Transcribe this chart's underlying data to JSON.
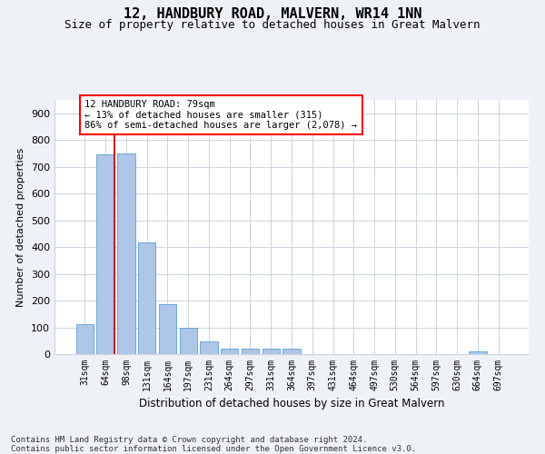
{
  "title": "12, HANDBURY ROAD, MALVERN, WR14 1NN",
  "subtitle": "Size of property relative to detached houses in Great Malvern",
  "xlabel": "Distribution of detached houses by size in Great Malvern",
  "ylabel": "Number of detached properties",
  "categories": [
    "31sqm",
    "64sqm",
    "98sqm",
    "131sqm",
    "164sqm",
    "197sqm",
    "231sqm",
    "264sqm",
    "297sqm",
    "331sqm",
    "364sqm",
    "397sqm",
    "431sqm",
    "464sqm",
    "497sqm",
    "530sqm",
    "564sqm",
    "597sqm",
    "630sqm",
    "664sqm",
    "697sqm"
  ],
  "values": [
    113,
    748,
    750,
    418,
    188,
    97,
    46,
    22,
    22,
    20,
    20,
    0,
    0,
    0,
    0,
    0,
    0,
    0,
    0,
    10,
    0
  ],
  "bar_color": "#aec6e8",
  "bar_edgecolor": "#5a9fd4",
  "annotation_text": "12 HANDBURY ROAD: 79sqm\n← 13% of detached houses are smaller (315)\n86% of semi-detached houses are larger (2,078) →",
  "vline_color": "#cc0000",
  "ylim": [
    0,
    950
  ],
  "yticks": [
    0,
    100,
    200,
    300,
    400,
    500,
    600,
    700,
    800,
    900
  ],
  "footer": "Contains HM Land Registry data © Crown copyright and database right 2024.\nContains public sector information licensed under the Open Government Licence v3.0.",
  "bg_color": "#eef2f7",
  "plot_bg_color": "#ffffff",
  "grid_color": "#c8d4e0"
}
